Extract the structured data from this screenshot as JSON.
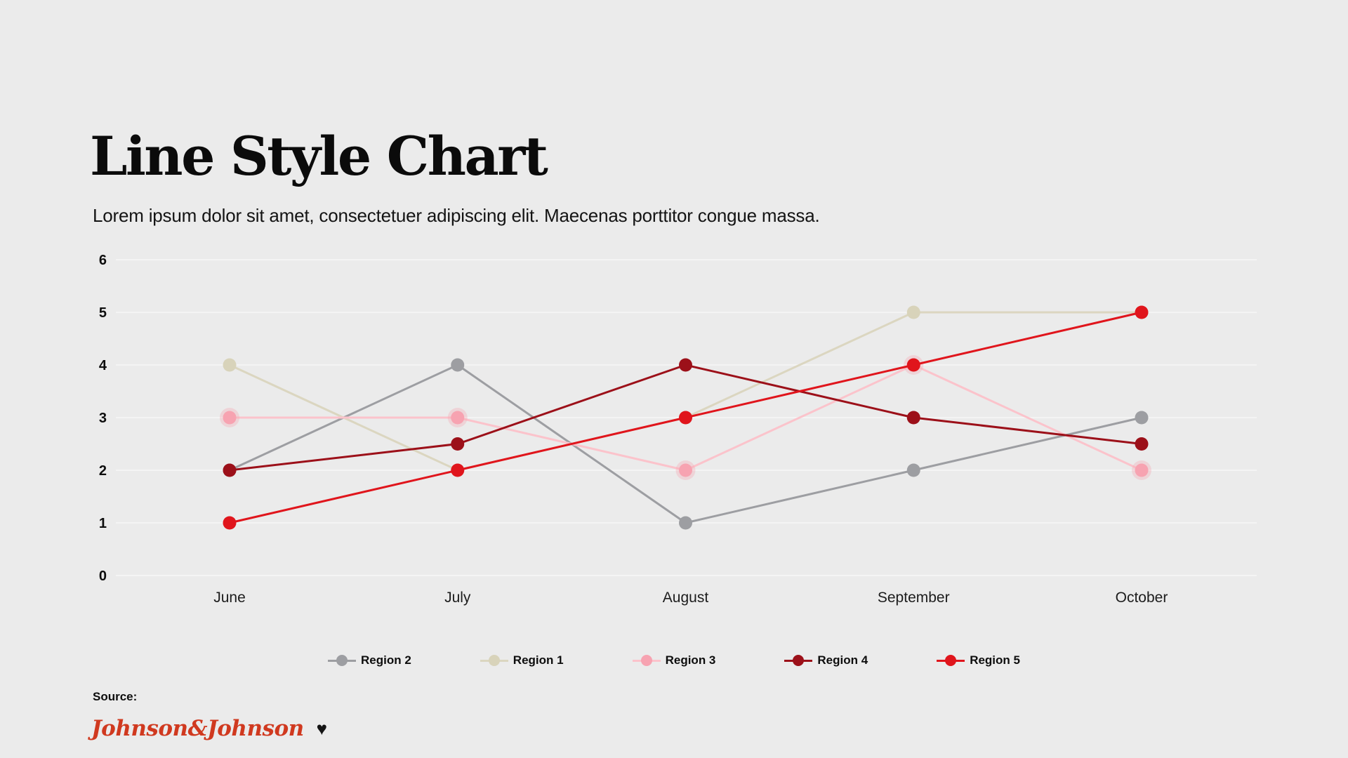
{
  "page": {
    "title": "Line Style Chart",
    "subtitle": "Lorem ipsum dolor sit amet, consectetuer adipiscing elit. Maecenas porttitor congue massa.",
    "source_label": "Source:",
    "brand": {
      "logo_text": "Johnson&Johnson",
      "heart_icon": "♥",
      "logo_color": "#d0391f"
    },
    "background_color": "#ebebeb"
  },
  "chart_data": {
    "type": "line",
    "title": "Line Style Chart",
    "categories": [
      "June",
      "July",
      "August",
      "September",
      "October"
    ],
    "series": [
      {
        "name": "Region 2",
        "color": "#9d9ea2",
        "values": [
          2,
          4,
          1,
          2,
          3
        ]
      },
      {
        "name": "Region 1",
        "color": "#d8d3ba",
        "line_color": "#dbd6c0",
        "values": [
          4,
          2,
          3,
          5,
          5
        ]
      },
      {
        "name": "Region 3",
        "color": "#f7a3b1",
        "line_color": "#fbc3cb",
        "halo": true,
        "values": [
          3,
          3,
          2,
          4,
          2
        ]
      },
      {
        "name": "Region 4",
        "color": "#9c1019",
        "values": [
          2,
          2.5,
          4,
          3,
          2.5
        ]
      },
      {
        "name": "Region 5",
        "color": "#e0151c",
        "values": [
          1,
          2,
          3,
          4,
          5
        ]
      }
    ],
    "y_ticks": [
      0,
      1,
      2,
      3,
      4,
      5,
      6
    ],
    "ylim": [
      0,
      6
    ],
    "xlabel": "",
    "ylabel": "",
    "grid": "horizontal-faint",
    "gridline_color": "#f4f4f4",
    "legend_position": "bottom"
  }
}
